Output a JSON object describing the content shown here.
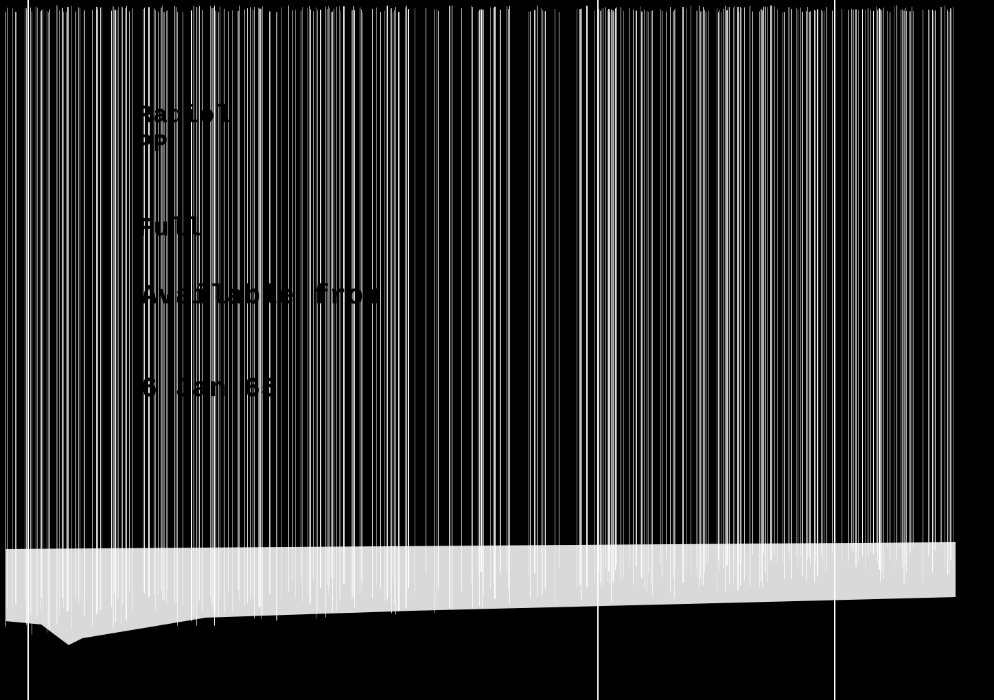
{
  "document": {
    "lines": [
      "Radiol",
      "PP",
      "Full",
      "",
      "Available from",
      "6 Jan 65"
    ]
  },
  "colors": {
    "background": "#000000",
    "stripes": "#ffffff"
  }
}
